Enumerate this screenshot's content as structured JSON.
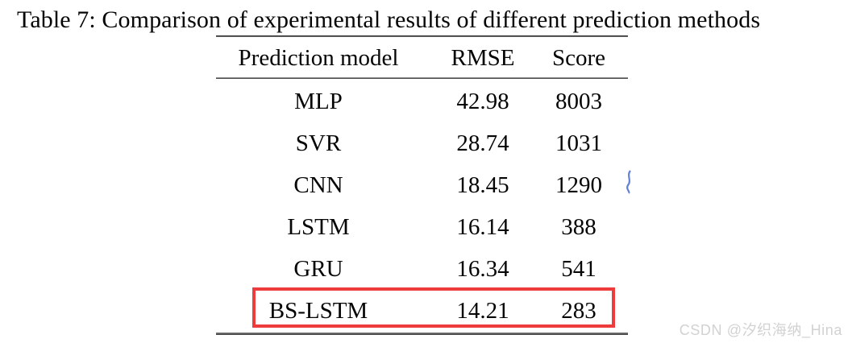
{
  "title": "Table 7: Comparison of experimental results of different prediction methods",
  "table": {
    "columns": [
      "Prediction model",
      "RMSE",
      "Score"
    ],
    "rows": [
      {
        "model": "MLP",
        "rmse": "42.98",
        "score": "8003",
        "highlighted": false
      },
      {
        "model": "SVR",
        "rmse": "28.74",
        "score": "1031",
        "highlighted": false
      },
      {
        "model": "CNN",
        "rmse": "18.45",
        "score": "1290",
        "highlighted": false
      },
      {
        "model": "LSTM",
        "rmse": "16.14",
        "score": "388",
        "highlighted": false
      },
      {
        "model": "GRU",
        "rmse": "16.34",
        "score": "541",
        "highlighted": false
      },
      {
        "model": "BS-LSTM",
        "rmse": "14.21",
        "score": "283",
        "highlighted": true
      }
    ]
  },
  "highlight": {
    "color": "#ee3b3b",
    "row": "BS-LSTM"
  },
  "ink_mark_color": "#2f55c9",
  "watermark": {
    "text": "CSDN @汐织海纳_Hina",
    "color": "#d2d2d2"
  },
  "chart_data": {
    "type": "table",
    "title": "Table 7: Comparison of experimental results of different prediction methods",
    "columns": [
      "Prediction model",
      "RMSE",
      "Score"
    ],
    "rows": [
      [
        "MLP",
        42.98,
        8003
      ],
      [
        "SVR",
        28.74,
        1031
      ],
      [
        "CNN",
        18.45,
        1290
      ],
      [
        "LSTM",
        16.14,
        388
      ],
      [
        "GRU",
        16.34,
        541
      ],
      [
        "BS-LSTM",
        14.21,
        283
      ]
    ],
    "highlighted_row": "BS-LSTM",
    "best_rmse": 14.21,
    "best_score": 283
  }
}
